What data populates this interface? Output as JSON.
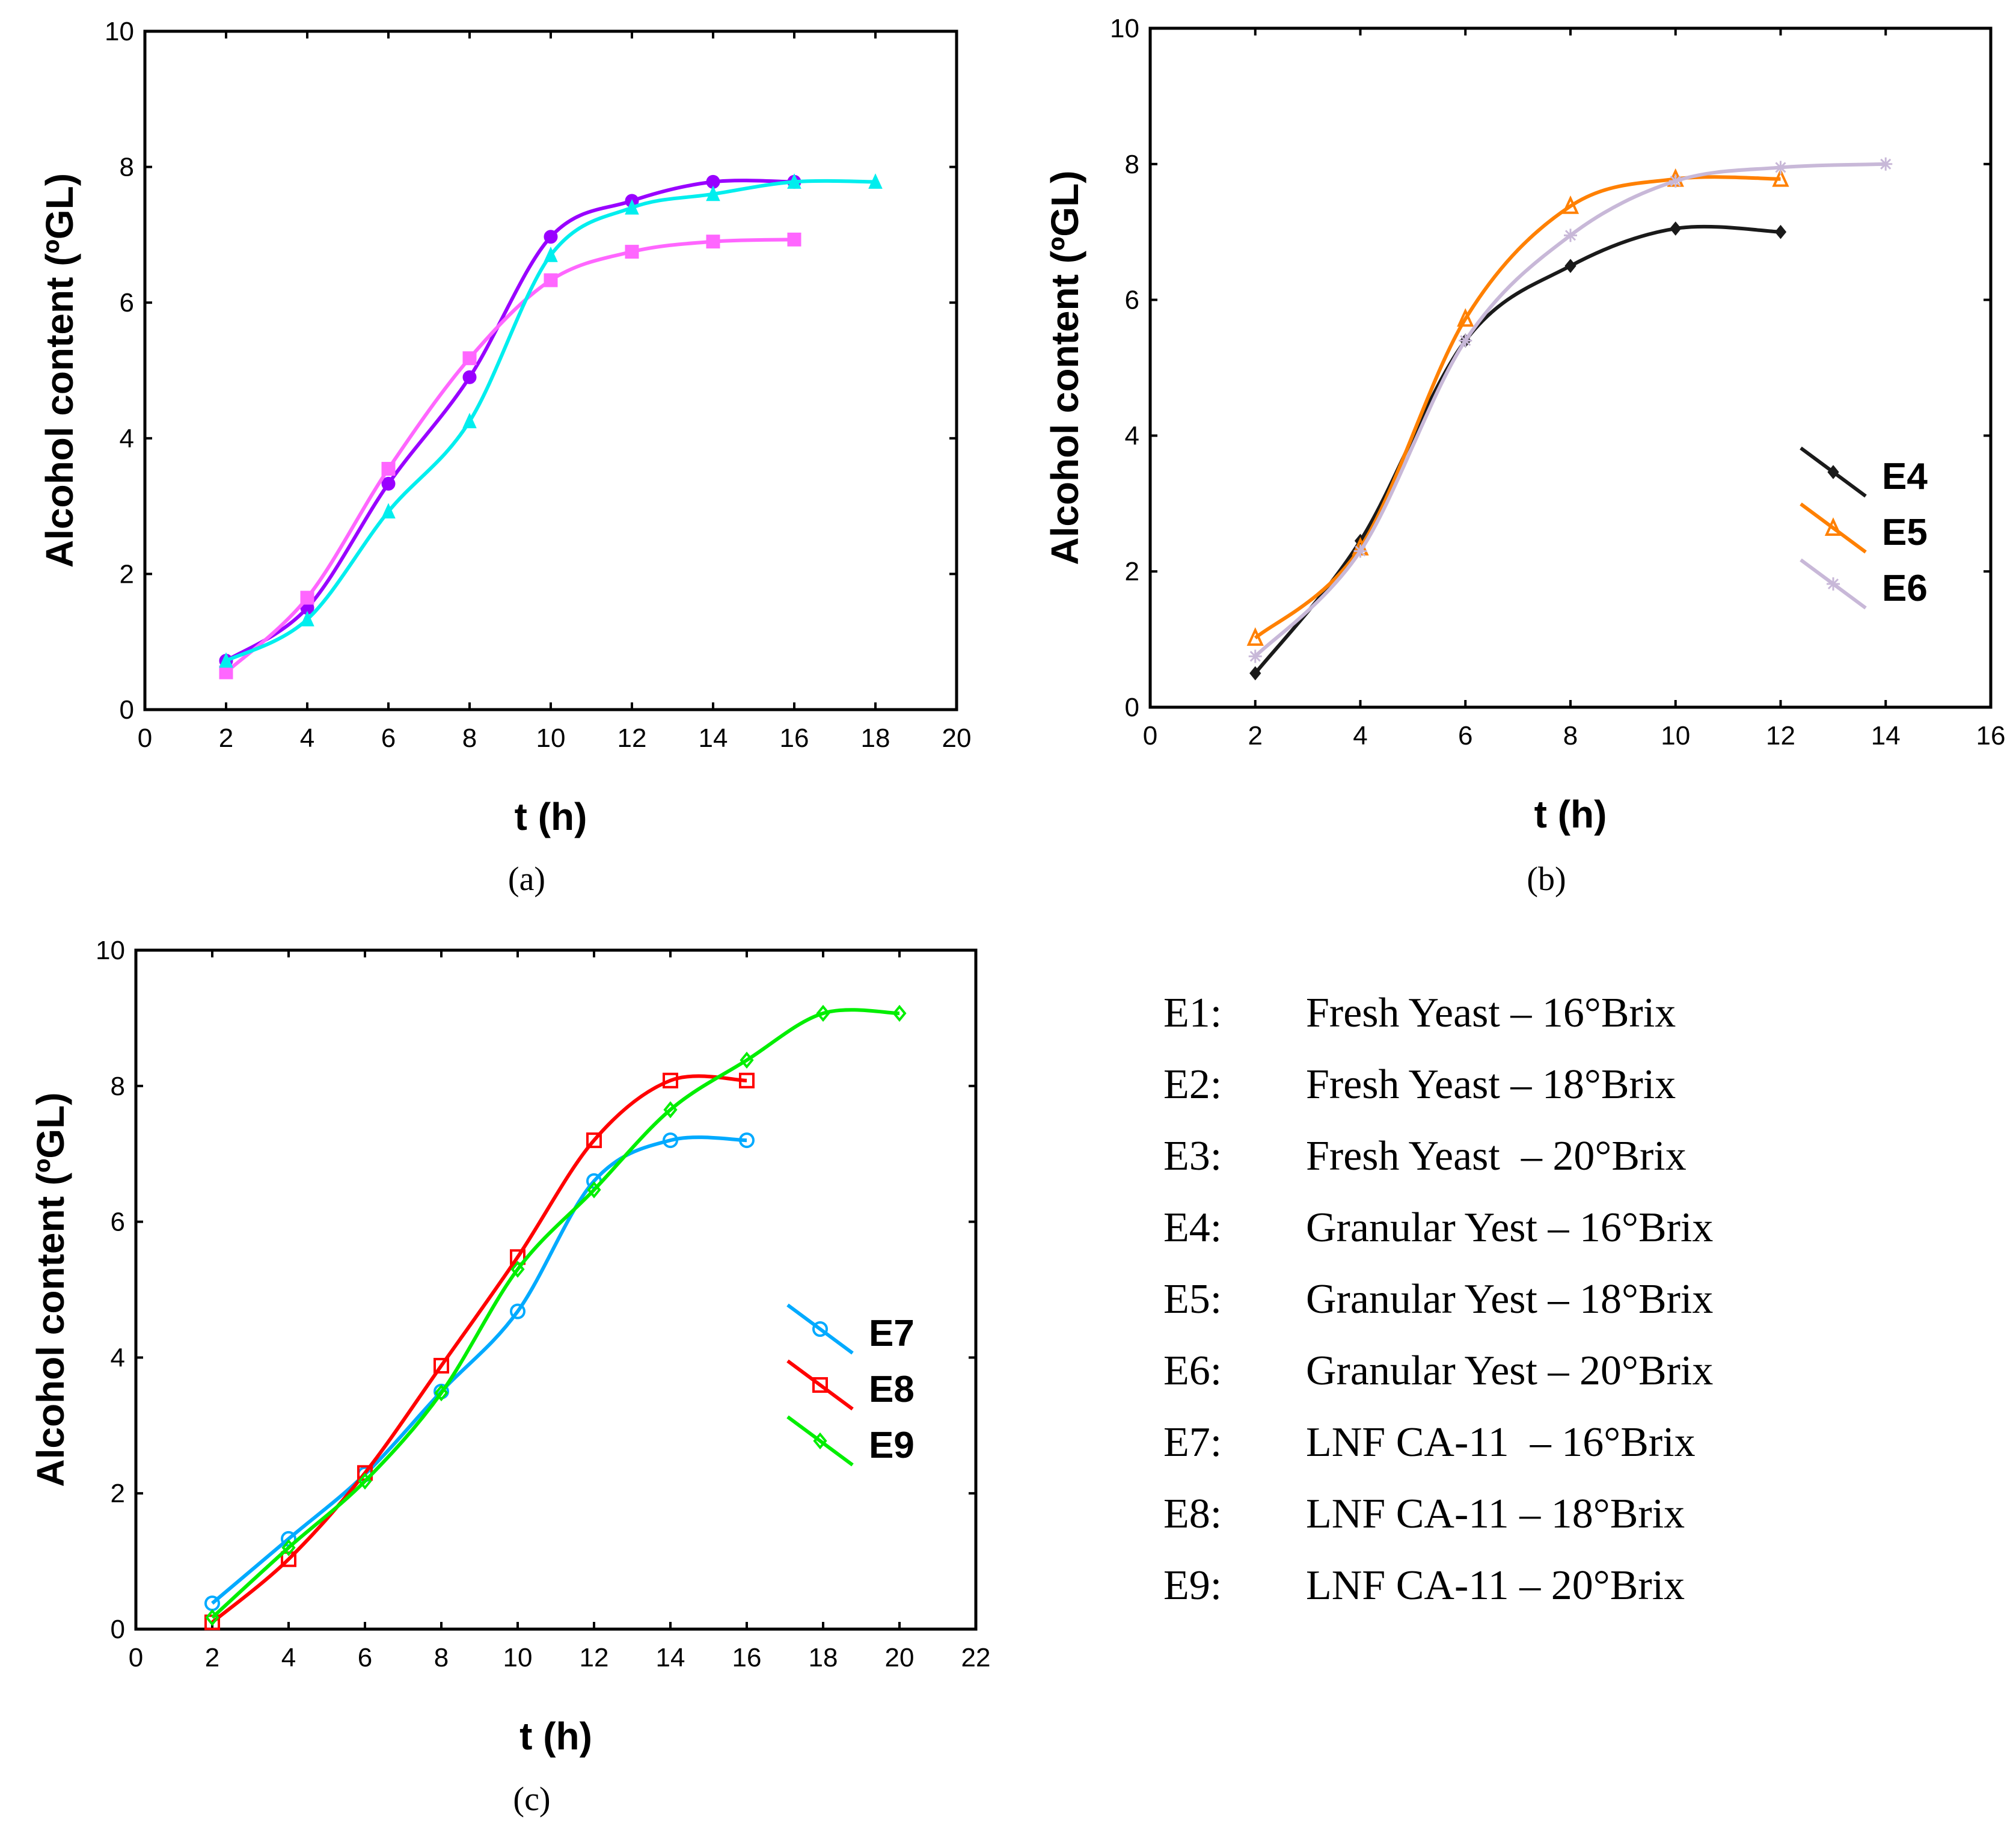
{
  "chart_data": [
    {
      "type": "line",
      "caption": "(a)",
      "xlabel": "t (h)",
      "ylabel": "Alcohol content (ºGL)",
      "xlim": [
        0,
        20
      ],
      "ylim": [
        0,
        10
      ],
      "xticks": [
        "0",
        "2",
        "4",
        "6",
        "8",
        "10",
        "12",
        "14",
        "16",
        "18",
        "20"
      ],
      "yticks": [
        "0",
        "2",
        "4",
        "6",
        "8",
        "10"
      ],
      "legend": null,
      "series": [
        {
          "color": "#9900ff",
          "marker": "circle-filled",
          "x": [
            2,
            4,
            6,
            8,
            10,
            12,
            14,
            16
          ],
          "y": [
            0.72,
            1.5,
            3.33,
            4.9,
            6.97,
            7.5,
            7.78,
            7.78
          ]
        },
        {
          "color": "#ff66ff",
          "marker": "square-filled",
          "x": [
            2,
            4,
            6,
            8,
            10,
            12,
            14,
            16
          ],
          "y": [
            0.55,
            1.65,
            3.55,
            5.18,
            6.33,
            6.75,
            6.9,
            6.93
          ]
        },
        {
          "color": "#00eeee",
          "marker": "triangle-filled",
          "x": [
            2,
            4,
            6,
            8,
            10,
            12,
            14,
            16,
            18
          ],
          "y": [
            0.72,
            1.33,
            2.92,
            4.25,
            6.7,
            7.4,
            7.6,
            7.78,
            7.78
          ]
        }
      ]
    },
    {
      "type": "line",
      "caption": "(b)",
      "xlabel": "t (h)",
      "ylabel": "Alcohol content (ºGL)",
      "xlim": [
        0,
        16
      ],
      "ylim": [
        0,
        10
      ],
      "xticks": [
        "0",
        "2",
        "4",
        "6",
        "8",
        "10",
        "12",
        "14",
        "16"
      ],
      "yticks": [
        "0",
        "2",
        "4",
        "6",
        "8",
        "10"
      ],
      "legend": "center-right",
      "series": [
        {
          "name": "E4",
          "color": "#1a1a1a",
          "marker": "diamond-filled",
          "x": [
            2,
            4,
            6,
            8,
            10,
            12
          ],
          "y": [
            0.5,
            2.45,
            5.4,
            6.5,
            7.05,
            7.0
          ]
        },
        {
          "name": "E5",
          "color": "#ff8000",
          "marker": "triangle-open",
          "x": [
            2,
            4,
            6,
            8,
            10,
            12
          ],
          "y": [
            1.02,
            2.35,
            5.72,
            7.38,
            7.78,
            7.78
          ]
        },
        {
          "name": "E6",
          "color": "#c8b8d8",
          "marker": "star",
          "x": [
            2,
            4,
            6,
            8,
            10,
            12,
            14
          ],
          "y": [
            0.75,
            2.3,
            5.4,
            6.95,
            7.75,
            7.95,
            8.0
          ]
        }
      ]
    },
    {
      "type": "line",
      "caption": "(c)",
      "xlabel": "t (h)",
      "ylabel": "Alcohol content (ºGL)",
      "xlim": [
        0,
        22
      ],
      "ylim": [
        0,
        10
      ],
      "xticks": [
        "0",
        "2",
        "4",
        "6",
        "8",
        "10",
        "12",
        "14",
        "16",
        "18",
        "20",
        "22"
      ],
      "yticks": [
        "0",
        "2",
        "4",
        "6",
        "8",
        "10"
      ],
      "legend": "center-right",
      "series": [
        {
          "name": "E7",
          "color": "#00aaff",
          "marker": "circle-open",
          "x": [
            2,
            4,
            6,
            8,
            10,
            12,
            14,
            16
          ],
          "y": [
            0.38,
            1.33,
            2.28,
            3.5,
            4.68,
            6.6,
            7.2,
            7.2
          ]
        },
        {
          "name": "E8",
          "color": "#ff0000",
          "marker": "square-open",
          "x": [
            2,
            4,
            6,
            8,
            10,
            12,
            14,
            16
          ],
          "y": [
            0.1,
            1.03,
            2.3,
            3.88,
            5.48,
            7.2,
            8.08,
            8.08
          ]
        },
        {
          "name": "E9",
          "color": "#00ee00",
          "marker": "diamond-open",
          "x": [
            2,
            4,
            6,
            8,
            10,
            12,
            14,
            16,
            18,
            20
          ],
          "y": [
            0.17,
            1.2,
            2.18,
            3.48,
            5.3,
            6.47,
            7.65,
            8.38,
            9.07,
            9.07
          ]
        }
      ]
    }
  ],
  "key": [
    {
      "code": "E1:",
      "desc": "Fresh Yeast – 16°Brix"
    },
    {
      "code": "E2:",
      "desc": "Fresh Yeast – 18°Brix"
    },
    {
      "code": "E3:",
      "desc": "Fresh Yeast  – 20°Brix"
    },
    {
      "code": "E4:",
      "desc": "Granular Yest – 16°Brix"
    },
    {
      "code": "E5:",
      "desc": "Granular Yest – 18°Brix"
    },
    {
      "code": "E6:",
      "desc": "Granular Yest – 20°Brix"
    },
    {
      "code": "E7:",
      "desc": "LNF CA-11  – 16°Brix"
    },
    {
      "code": "E8:",
      "desc": "LNF CA-11 – 18°Brix"
    },
    {
      "code": "E9:",
      "desc": "LNF CA-11 – 20°Brix"
    }
  ]
}
